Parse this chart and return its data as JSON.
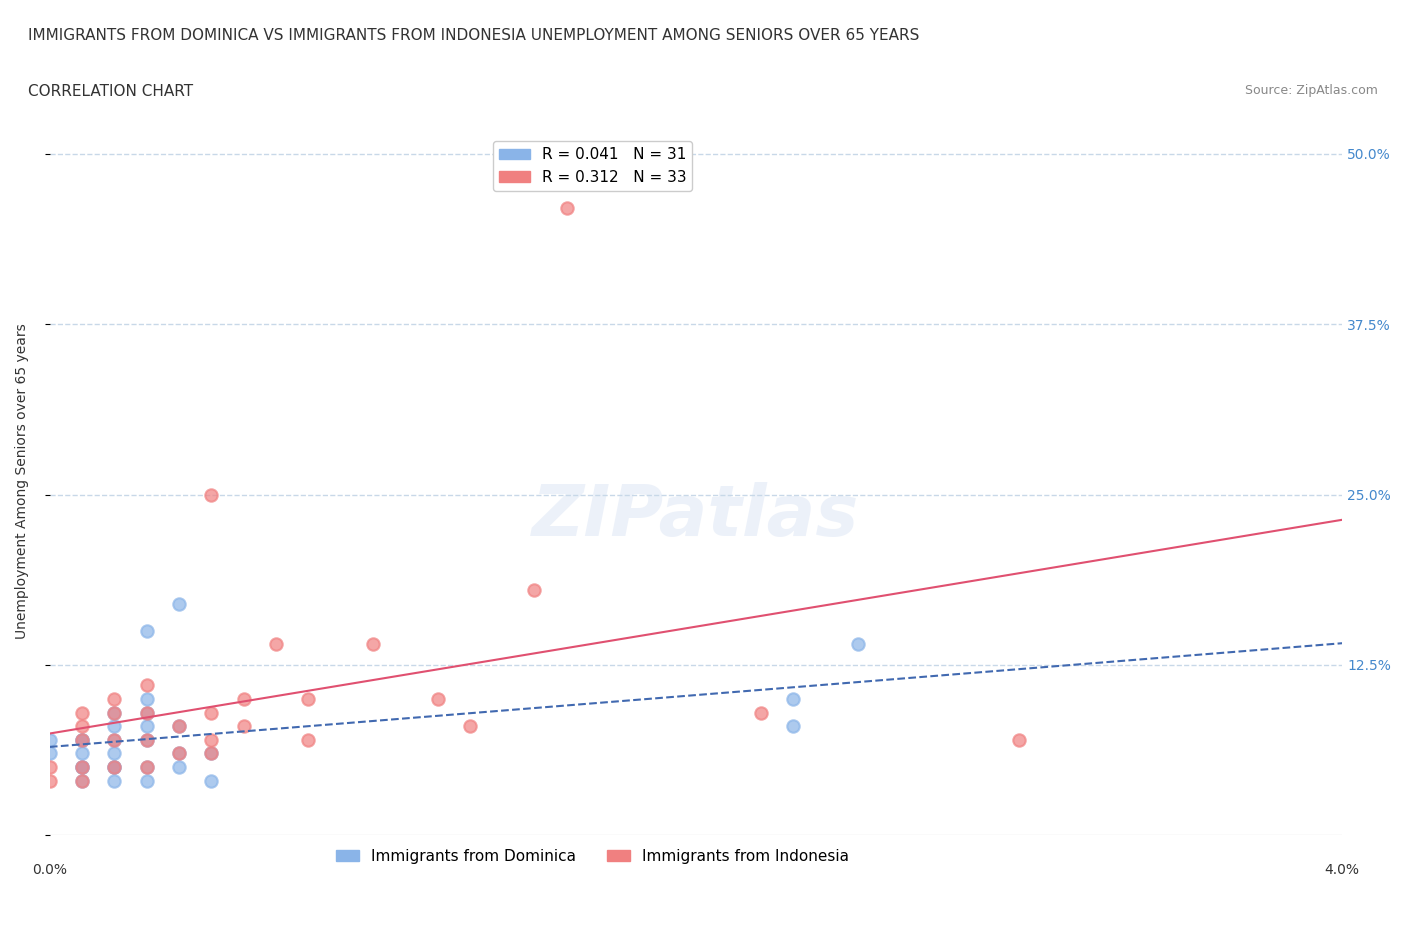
{
  "title": "IMMIGRANTS FROM DOMINICA VS IMMIGRANTS FROM INDONESIA UNEMPLOYMENT AMONG SENIORS OVER 65 YEARS",
  "subtitle": "CORRELATION CHART",
  "source": "Source: ZipAtlas.com",
  "ylabel": "Unemployment Among Seniors over 65 years",
  "yticks": [
    0.0,
    0.125,
    0.25,
    0.375,
    0.5
  ],
  "ytick_labels": [
    "",
    "12.5%",
    "25.0%",
    "37.5%",
    "50.0%"
  ],
  "xlim": [
    0.0,
    0.04
  ],
  "ylim": [
    0.0,
    0.52
  ],
  "dominica_R": 0.041,
  "dominica_N": 31,
  "indonesia_R": 0.312,
  "indonesia_N": 33,
  "dominica_color": "#8ab4e8",
  "indonesia_color": "#f08080",
  "dominica_line_color": "#4169b0",
  "indonesia_line_color": "#e05070",
  "background_color": "#ffffff",
  "grid_color": "#c8d8e8",
  "dominica_x": [
    0.0,
    0.0,
    0.001,
    0.001,
    0.001,
    0.001,
    0.001,
    0.001,
    0.002,
    0.002,
    0.002,
    0.002,
    0.002,
    0.002,
    0.002,
    0.003,
    0.003,
    0.003,
    0.003,
    0.003,
    0.003,
    0.003,
    0.004,
    0.004,
    0.004,
    0.004,
    0.005,
    0.005,
    0.023,
    0.023,
    0.025
  ],
  "dominica_y": [
    0.06,
    0.07,
    0.04,
    0.05,
    0.05,
    0.06,
    0.07,
    0.07,
    0.04,
    0.05,
    0.05,
    0.06,
    0.07,
    0.08,
    0.09,
    0.04,
    0.05,
    0.07,
    0.08,
    0.09,
    0.1,
    0.15,
    0.05,
    0.06,
    0.08,
    0.17,
    0.04,
    0.06,
    0.08,
    0.1,
    0.14
  ],
  "indonesia_x": [
    0.0,
    0.0,
    0.001,
    0.001,
    0.001,
    0.001,
    0.001,
    0.002,
    0.002,
    0.002,
    0.002,
    0.003,
    0.003,
    0.003,
    0.003,
    0.004,
    0.004,
    0.005,
    0.005,
    0.005,
    0.005,
    0.006,
    0.006,
    0.007,
    0.008,
    0.008,
    0.01,
    0.012,
    0.013,
    0.015,
    0.016,
    0.022,
    0.03
  ],
  "indonesia_y": [
    0.04,
    0.05,
    0.04,
    0.05,
    0.07,
    0.08,
    0.09,
    0.05,
    0.07,
    0.09,
    0.1,
    0.05,
    0.07,
    0.09,
    0.11,
    0.06,
    0.08,
    0.06,
    0.07,
    0.09,
    0.25,
    0.08,
    0.1,
    0.14,
    0.07,
    0.1,
    0.14,
    0.1,
    0.08,
    0.18,
    0.46,
    0.09,
    0.07
  ],
  "title_fontsize": 11,
  "subtitle_fontsize": 11,
  "source_fontsize": 9,
  "axis_label_fontsize": 10,
  "tick_fontsize": 10,
  "legend_fontsize": 11
}
